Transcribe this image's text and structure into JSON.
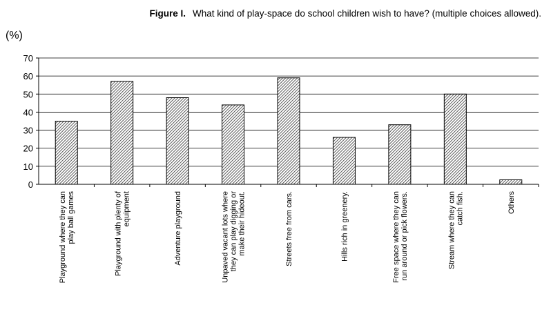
{
  "figure": {
    "label": "Figure I.",
    "caption": "What kind of play-space do school children wish to have? (multiple choices allowed)."
  },
  "chart_data": {
    "type": "bar",
    "unit_label": "(%)",
    "ylim": [
      0,
      70
    ],
    "yticks": [
      0,
      10,
      20,
      30,
      40,
      50,
      60,
      70
    ],
    "grid": true,
    "legend": "none",
    "bar_fill": "diagonal-hatch",
    "categories": [
      [
        "Playground where they can",
        "play ball games"
      ],
      [
        "Playground with plenty of",
        "equipment"
      ],
      [
        "Adventure playground"
      ],
      [
        "Unpaved vacant lots where",
        "they can play digging or",
        "make their hideout."
      ],
      [
        "Streets free from cars."
      ],
      [
        "Hills rich in greenery."
      ],
      [
        "Free space where they can",
        "run around or pick flowers."
      ],
      [
        "Stream where they can",
        "catch fish."
      ],
      [
        "Others"
      ]
    ],
    "values": [
      35,
      57,
      48,
      44,
      59,
      26,
      33,
      50,
      2.5
    ]
  }
}
